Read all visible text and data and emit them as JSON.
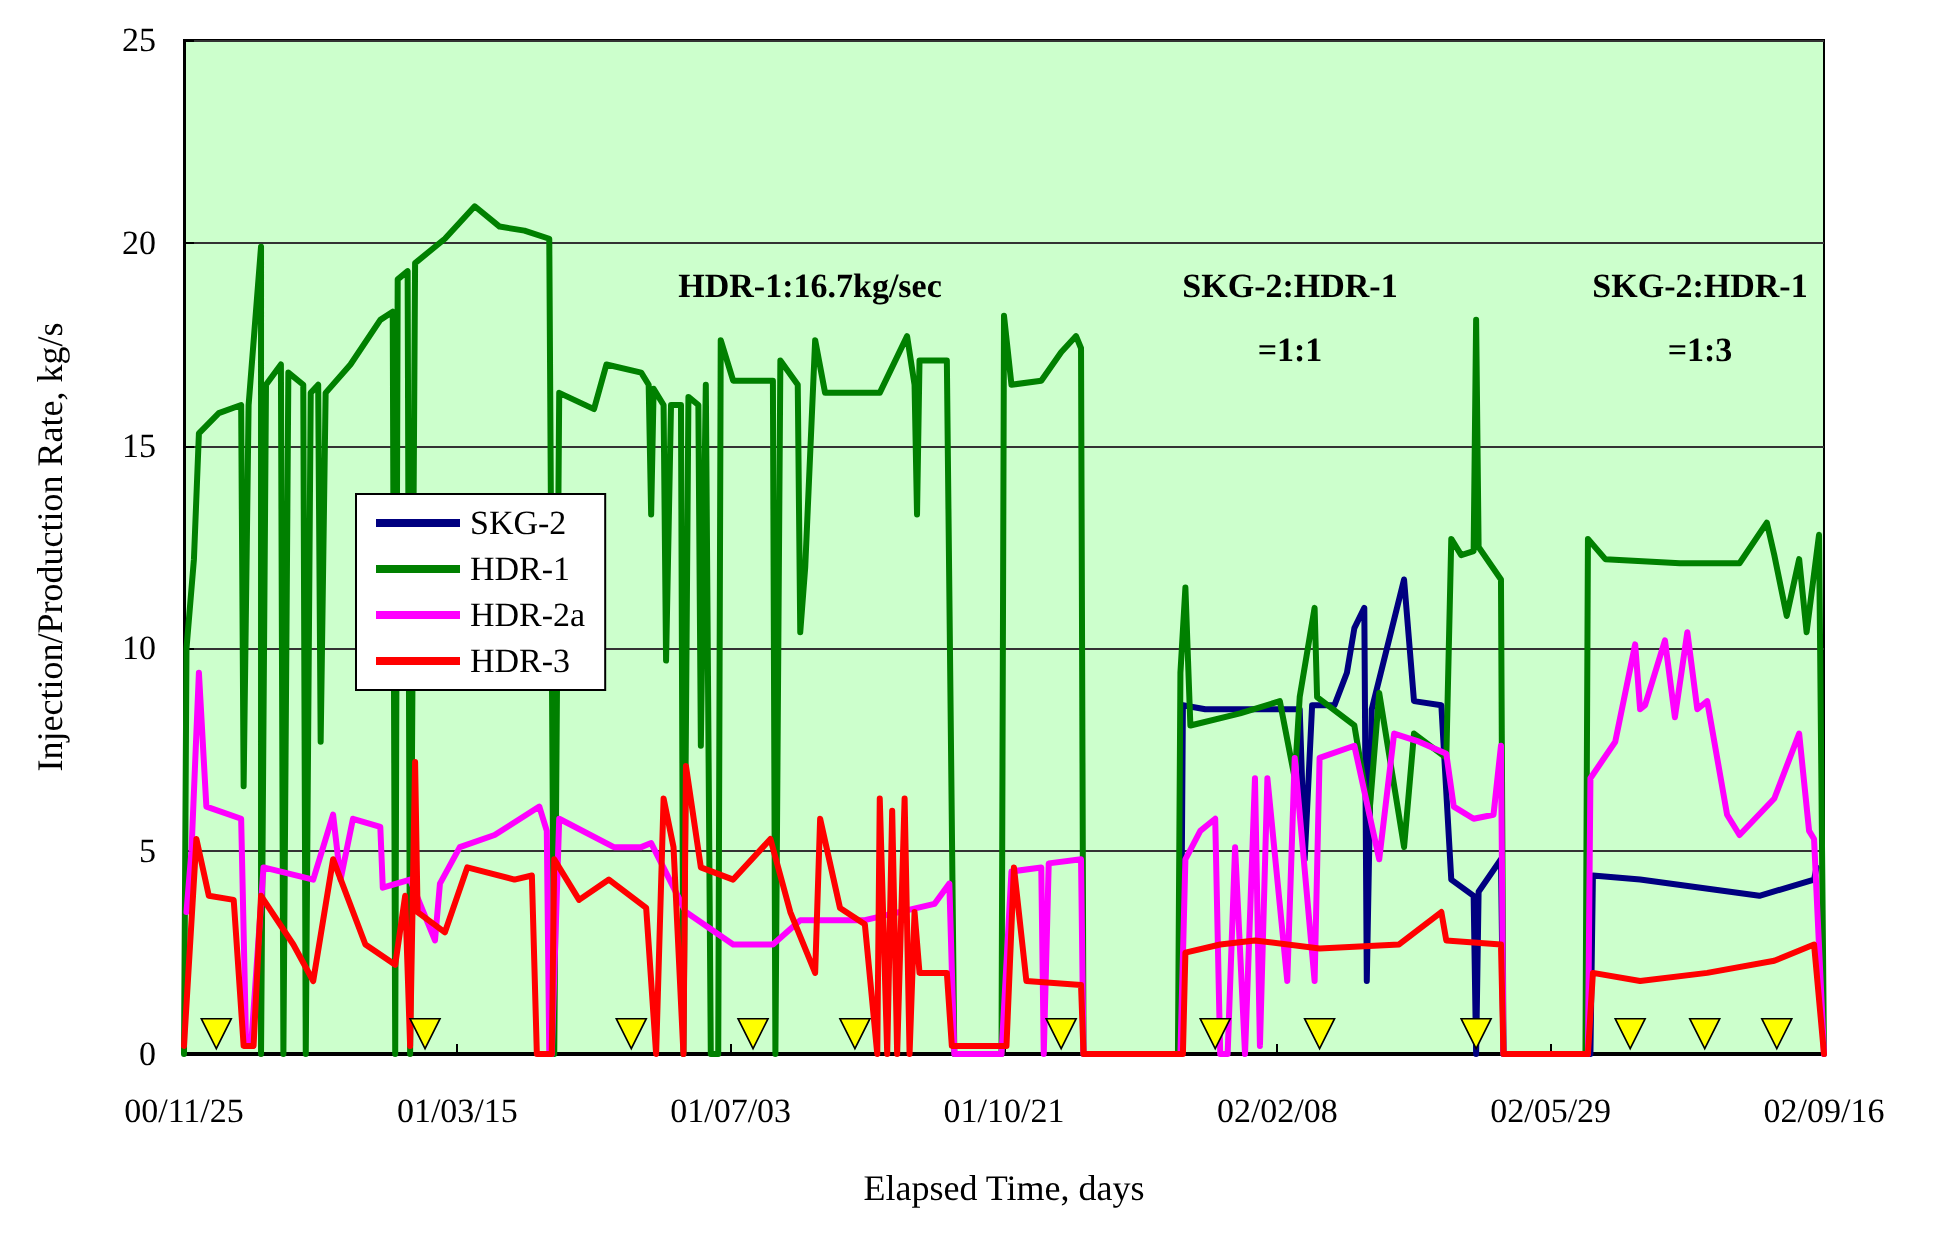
{
  "chart_data": {
    "type": "line",
    "xlabel": "Elapsed Time, days",
    "ylabel": "Injection/Production Rate, kg/s",
    "xlim": [
      "2000-11-25",
      "2002-09-16"
    ],
    "xticks": [
      {
        "value": "2000-11-25",
        "label": "00/11/25"
      },
      {
        "value": "2001-03-15",
        "label": "01/03/15"
      },
      {
        "value": "2001-07-03",
        "label": "01/07/03"
      },
      {
        "value": "2001-10-21",
        "label": "01/10/21"
      },
      {
        "value": "2002-02-08",
        "label": "02/02/08"
      },
      {
        "value": "2002-05-29",
        "label": "02/05/29"
      },
      {
        "value": "2002-09-16",
        "label": "02/09/16"
      }
    ],
    "ylim": [
      0,
      25
    ],
    "yticks": [
      0,
      5,
      10,
      15,
      20,
      25
    ],
    "grid": "y",
    "legend": "left",
    "marker": "none",
    "line_style": "solid",
    "annotations": [
      "HDR-1:16.7kg/sec",
      "SKG-2:HDR-1\n=1:1",
      "SKG-2:HDR-1\n=1:3"
    ],
    "series": [
      {
        "name": "SKG-2",
        "color": "#000080",
        "x": [
          "2001-12-31",
          "2002-01-01",
          "2002-01-10",
          "2002-02-17",
          "2002-02-19",
          "2002-02-22",
          "2002-03-03",
          "2002-03-08",
          "2002-03-11",
          "2002-03-15",
          "2002-03-16",
          "2002-03-18",
          "2002-03-31",
          "2002-04-04",
          "2002-04-15",
          "2002-04-19",
          "2002-04-28",
          "2002-04-29",
          "2002-04-30",
          "2002-05-09",
          "2002-05-10",
          "2002-06-14",
          "2002-06-15",
          "2002-07-04",
          "2002-08-21",
          "2002-09-12",
          "2002-09-13"
        ],
        "values": [
          0,
          8.6,
          8.5,
          8.5,
          4.8,
          8.6,
          8.6,
          9.4,
          10.5,
          11,
          1.8,
          8.5,
          11.7,
          8.7,
          8.6,
          4.3,
          3.9,
          0,
          4,
          4.8,
          0,
          0,
          4.4,
          4.3,
          3.9,
          4.3,
          4.6
        ]
      },
      {
        "name": "HDR-1",
        "color": "#008000",
        "x": [
          "2000-11-25",
          "2000-11-26",
          "2000-11-29",
          "2000-12-01",
          "2000-12-09",
          "2000-12-18",
          "2000-12-19",
          "2000-12-21",
          "2000-12-26",
          "2000-12-26",
          "2000-12-28",
          "2001-01-03",
          "2001-01-04",
          "2001-01-06",
          "2001-01-12",
          "2001-01-13",
          "2001-01-15",
          "2001-01-18",
          "2001-01-19",
          "2001-01-21",
          "2001-01-31",
          "2001-02-12",
          "2001-02-17",
          "2001-02-18",
          "2001-02-19",
          "2001-02-23",
          "2001-02-24",
          "2001-02-26",
          "2001-03-10",
          "2001-03-22",
          "2001-04-01",
          "2001-04-11",
          "2001-04-21",
          "2001-04-23",
          "2001-04-25",
          "2001-05-09",
          "2001-05-14",
          "2001-05-28",
          "2001-05-31",
          "2001-06-01",
          "2001-06-02",
          "2001-06-06",
          "2001-06-07",
          "2001-06-09",
          "2001-06-13",
          "2001-06-14",
          "2001-06-16",
          "2001-06-20",
          "2001-06-21",
          "2001-06-23",
          "2001-06-25",
          "2001-06-28",
          "2001-06-29",
          "2001-07-04",
          "2001-07-20",
          "2001-07-21",
          "2001-07-23",
          "2001-07-30",
          "2001-07-31",
          "2001-08-02",
          "2001-08-06",
          "2001-08-10",
          "2001-09-01",
          "2001-09-12",
          "2001-09-15",
          "2001-09-16",
          "2001-09-17",
          "2001-09-28",
          "2001-10-01",
          "2001-10-20",
          "2001-10-21",
          "2001-10-24",
          "2001-11-05",
          "2001-11-13",
          "2001-11-19",
          "2001-11-21",
          "2001-11-22",
          "2001-12-30",
          "2001-12-31",
          "2002-01-02",
          "2002-01-04",
          "2002-01-24",
          "2002-02-09",
          "2002-02-15",
          "2002-02-17",
          "2002-02-23",
          "2002-02-24",
          "2002-03-11",
          "2002-03-17",
          "2002-03-21",
          "2002-03-31",
          "2002-04-04",
          "2002-04-17",
          "2002-04-19",
          "2002-04-23",
          "2002-04-28",
          "2002-04-29",
          "2002-04-30",
          "2002-05-09",
          "2002-05-10",
          "2002-06-12",
          "2002-06-13",
          "2002-06-20",
          "2002-07-20",
          "2002-08-13",
          "2002-08-24",
          "2002-08-27",
          "2002-09-01",
          "2002-09-06",
          "2002-09-09",
          "2002-09-14",
          "2002-09-16"
        ],
        "values": [
          0,
          10,
          12.2,
          15.3,
          15.8,
          16,
          6.6,
          16,
          19.9,
          0,
          16.5,
          17,
          0,
          16.8,
          16.5,
          0,
          16.3,
          16.5,
          7.7,
          16.3,
          17,
          18.1,
          18.3,
          0,
          19.1,
          19.3,
          0,
          19.5,
          20.1,
          20.9,
          20.4,
          20.3,
          20.1,
          0,
          16.3,
          15.9,
          17,
          16.8,
          16.5,
          13.3,
          16.4,
          16,
          9.7,
          16,
          16,
          0,
          16.2,
          16,
          7.6,
          16.5,
          0,
          0,
          17.6,
          16.6,
          16.6,
          0,
          17.1,
          16.5,
          10.4,
          12,
          17.6,
          16.3,
          16.3,
          17.7,
          16.5,
          13.3,
          17.1,
          17.1,
          0,
          0,
          18.2,
          16.5,
          16.6,
          17.3,
          17.7,
          17.4,
          0,
          0,
          9.4,
          11.5,
          8.1,
          8.4,
          8.7,
          6.8,
          8.8,
          11,
          8.8,
          8.1,
          5.9,
          8.9,
          5.1,
          7.9,
          7.3,
          12.7,
          12.3,
          12.4,
          18.1,
          12.5,
          11.7,
          0,
          0,
          12.7,
          12.2,
          12.1,
          12.1,
          13.1,
          12.3,
          10.8,
          12.2,
          10.4,
          12.8,
          0
        ]
      },
      {
        "name": "HDR-2a",
        "color": "#ff00ff",
        "x": [
          "2000-11-26",
          "2000-11-28",
          "2000-12-01",
          "2000-12-04",
          "2000-12-18",
          "2000-12-20",
          "2000-12-22",
          "2000-12-27",
          "2001-01-16",
          "2001-01-24",
          "2001-01-27",
          "2001-02-01",
          "2001-02-12",
          "2001-02-13",
          "2001-02-24",
          "2001-03-06",
          "2001-03-08",
          "2001-03-16",
          "2001-03-30",
          "2001-04-17",
          "2001-04-20",
          "2001-04-21",
          "2001-04-22",
          "2001-04-25",
          "2001-05-17",
          "2001-05-28",
          "2001-06-01",
          "2001-06-15",
          "2001-07-04",
          "2001-07-20",
          "2001-07-31",
          "2001-08-26",
          "2001-09-23",
          "2001-09-29",
          "2001-10-01",
          "2001-10-20",
          "2001-10-24",
          "2001-11-05",
          "2001-11-06",
          "2001-11-08",
          "2001-11-21",
          "2001-11-22",
          "2001-12-31",
          "2002-01-02",
          "2002-01-08",
          "2002-01-14",
          "2002-01-16",
          "2002-01-19",
          "2002-01-22",
          "2002-01-26",
          "2002-01-30",
          "2002-02-01",
          "2002-02-04",
          "2002-02-12",
          "2002-02-15",
          "2002-02-23",
          "2002-02-25",
          "2002-03-11",
          "2002-03-21",
          "2002-03-27",
          "2002-04-06",
          "2002-04-17",
          "2002-04-20",
          "2002-04-28",
          "2002-05-06",
          "2002-05-09",
          "2002-05-10",
          "2002-06-13",
          "2002-06-14",
          "2002-06-24",
          "2002-07-02",
          "2002-07-04",
          "2002-07-06",
          "2002-07-14",
          "2002-07-18",
          "2002-07-23",
          "2002-07-27",
          "2002-07-31",
          "2002-08-08",
          "2002-08-13",
          "2002-08-27",
          "2002-09-06",
          "2002-09-10",
          "2002-09-12",
          "2002-09-16"
        ],
        "values": [
          3.5,
          5,
          9.4,
          6.1,
          5.8,
          0.2,
          0.2,
          4.6,
          4.3,
          5.9,
          4.3,
          5.8,
          5.6,
          4.1,
          4.3,
          2.8,
          4.2,
          5.1,
          5.4,
          6.1,
          5.5,
          0,
          0,
          5.8,
          5.1,
          5.1,
          5.2,
          3.5,
          2.7,
          2.7,
          3.3,
          3.3,
          3.7,
          4.2,
          0,
          0,
          4.5,
          4.6,
          0,
          4.7,
          4.8,
          0,
          0,
          4.8,
          5.5,
          5.8,
          0,
          0,
          5.1,
          0,
          6.8,
          0.2,
          6.8,
          1.8,
          7.3,
          1.8,
          7.3,
          7.6,
          4.8,
          7.9,
          7.7,
          7.4,
          6.1,
          5.8,
          5.9,
          7.6,
          0,
          0,
          6.8,
          7.7,
          10.1,
          8.5,
          8.6,
          10.2,
          8.3,
          10.4,
          8.5,
          8.7,
          5.9,
          5.4,
          6.3,
          7.9,
          5.5,
          5.3,
          0
        ]
      },
      {
        "name": "HDR-3",
        "color": "#ff0000",
        "x": [
          "2000-11-25",
          "2000-11-30",
          "2000-12-05",
          "2000-12-15",
          "2000-12-19",
          "2000-12-23",
          "2000-12-26",
          "2001-01-08",
          "2001-01-16",
          "2001-01-24",
          "2001-02-06",
          "2001-02-18",
          "2001-02-22",
          "2001-02-24",
          "2001-02-26",
          "2001-02-27",
          "2001-03-10",
          "2001-03-19",
          "2001-04-07",
          "2001-04-14",
          "2001-04-16",
          "2001-04-22",
          "2001-04-23",
          "2001-05-03",
          "2001-05-15",
          "2001-05-30",
          "2001-06-03",
          "2001-06-06",
          "2001-06-10",
          "2001-06-14",
          "2001-06-15",
          "2001-06-21",
          "2001-07-04",
          "2001-07-19",
          "2001-07-27",
          "2001-08-06",
          "2001-08-08",
          "2001-08-16",
          "2001-08-26",
          "2001-08-31",
          "2001-09-01",
          "2001-09-04",
          "2001-09-06",
          "2001-09-08",
          "2001-09-11",
          "2001-09-13",
          "2001-09-15",
          "2001-09-17",
          "2001-09-28",
          "2001-09-30",
          "2001-10-22",
          "2001-10-25",
          "2001-10-30",
          "2001-11-21",
          "2001-11-22",
          "2002-01-01",
          "2002-01-02",
          "2002-01-16",
          "2002-01-30",
          "2002-02-25",
          "2002-03-29",
          "2002-04-15",
          "2002-04-17",
          "2002-05-09",
          "2002-05-10",
          "2002-06-13",
          "2002-06-15",
          "2002-07-04",
          "2002-07-31",
          "2002-08-27",
          "2002-09-12",
          "2002-09-16"
        ],
        "values": [
          0.2,
          5.3,
          3.9,
          3.8,
          0.2,
          0.2,
          3.9,
          2.7,
          1.8,
          4.8,
          2.7,
          2.2,
          3.9,
          0.2,
          7.2,
          3.5,
          3,
          4.6,
          4.3,
          4.4,
          0,
          0,
          4.8,
          3.8,
          4.3,
          3.6,
          0,
          6.3,
          5.1,
          0,
          7.1,
          4.6,
          4.3,
          5.3,
          3.5,
          2,
          5.8,
          3.6,
          3.2,
          0,
          6.3,
          0,
          6,
          0,
          6.3,
          0,
          3.5,
          2,
          2,
          0.2,
          0.2,
          4.6,
          1.8,
          1.7,
          0,
          0,
          2.5,
          2.7,
          2.8,
          2.6,
          2.7,
          3.5,
          2.8,
          2.7,
          0,
          0,
          2,
          1.8,
          2,
          2.3,
          2.7,
          0
        ]
      },
      {
        "type": "scatter",
        "marker": "triangle",
        "color": "#ffff00",
        "x": [
          "2000-12-08",
          "2001-03-02",
          "2001-05-24",
          "2001-07-12",
          "2001-08-22",
          "2001-11-13",
          "2002-01-14",
          "2002-02-25",
          "2002-04-29",
          "2002-06-30",
          "2002-07-30",
          "2002-08-28"
        ],
        "values": [
          0.5,
          0.5,
          0.5,
          0.5,
          0.5,
          0.5,
          0.5,
          0.5,
          0.5,
          0.5,
          0.5,
          0.5
        ]
      }
    ]
  }
}
